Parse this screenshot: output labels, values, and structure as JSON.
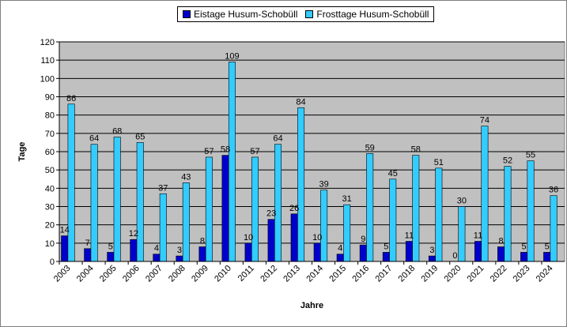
{
  "chart_data": {
    "type": "bar",
    "categories": [
      "2003",
      "2004",
      "2005",
      "2006",
      "2007",
      "2008",
      "2009",
      "2010",
      "2011",
      "2012",
      "2013",
      "2014",
      "2015",
      "2016",
      "2017",
      "2018",
      "2019",
      "2020",
      "2021",
      "2022",
      "2023",
      "2024"
    ],
    "series": [
      {
        "name": "Eistage Husum-Schobüll",
        "color": "#0000CC",
        "values": [
          14,
          7,
          5,
          12,
          4,
          3,
          8,
          58,
          10,
          23,
          26,
          10,
          4,
          9,
          5,
          11,
          3,
          0,
          11,
          8,
          5,
          5
        ]
      },
      {
        "name": "Frosttage Husum-Schobüll",
        "color": "#33CCFF",
        "values": [
          86,
          64,
          68,
          65,
          37,
          43,
          57,
          109,
          57,
          64,
          84,
          39,
          31,
          59,
          45,
          58,
          51,
          30,
          74,
          52,
          55,
          36
        ]
      }
    ],
    "xlabel": "Jahre",
    "ylabel": "Tage",
    "ylim": [
      0,
      120
    ],
    "yticks": [
      0,
      10,
      20,
      30,
      40,
      50,
      60,
      70,
      80,
      90,
      100,
      110,
      120
    ],
    "grid": true,
    "plot_background": "#C0C0C0",
    "legend_position": "top-center"
  }
}
